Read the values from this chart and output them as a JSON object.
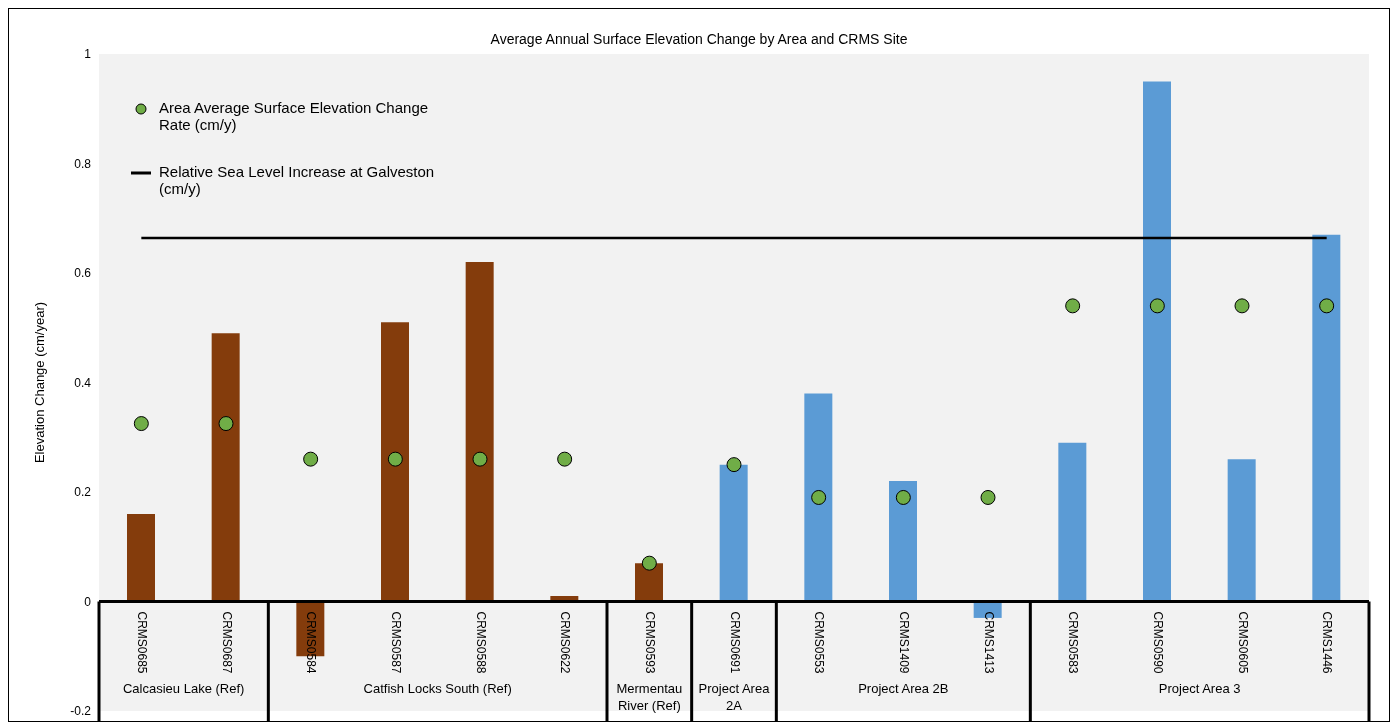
{
  "chart_data": {
    "type": "bar",
    "title": "Average Annual Surface Elevation Change by Area and CRMS Site",
    "ylabel": "Elevation Change (cm/year)",
    "categories": [
      "CRMS0685",
      "CRMS0687",
      "CRMS0584",
      "CRMS0587",
      "CRMS0588",
      "CRMS0622",
      "CRMS0593",
      "CRMS0691",
      "CRMS0553",
      "CRMS1409",
      "CRMS1413",
      "CRMS0583",
      "CRMS0590",
      "CRMS0605",
      "CRMS1446"
    ],
    "series": [
      {
        "colors": [
          "#843c0c",
          "#843c0c",
          "#843c0c",
          "#843c0c",
          "#843c0c",
          "#843c0c",
          "#843c0c",
          "#5b9bd5",
          "#5b9bd5",
          "#5b9bd5",
          "#5b9bd5",
          "#5b9bd5",
          "#5b9bd5",
          "#5b9bd5",
          "#5b9bd5"
        ],
        "values": [
          0.16,
          0.49,
          -0.1,
          0.51,
          0.62,
          0.01,
          0.07,
          0.25,
          0.38,
          0.22,
          -0.03,
          0.29,
          0.95,
          0.26,
          0.67
        ]
      },
      {
        "type": "scatter",
        "name": "Area Average Surface Elevation Change Rate (cm/y)",
        "color": "#70ad47",
        "marker": "circle",
        "values": [
          0.325,
          0.325,
          0.26,
          0.26,
          0.26,
          0.26,
          0.07,
          0.25,
          0.19,
          0.19,
          0.19,
          0.54,
          0.54,
          0.54,
          0.54
        ]
      },
      {
        "type": "line",
        "name": "Relative Sea Level Increase at Galveston (cm/y)",
        "color": "#000000",
        "values": [
          0.664,
          0.664,
          0.664,
          0.664,
          0.664,
          0.664,
          0.664,
          0.664,
          0.664,
          0.664,
          0.664,
          0.664,
          0.664,
          0.664,
          0.664
        ]
      }
    ],
    "annotations": [
      "Calcasieu Lake (Ref)",
      "Catfish Locks South (Ref)",
      "Mermentau River (Ref)",
      "Project Area 2A",
      "Project Area 2B",
      "Project Area 3"
    ],
    "ylim": [
      -0.2,
      1
    ],
    "yticks": [
      -0.2,
      0,
      0.2,
      0.4,
      0.6,
      0.8,
      1
    ],
    "grid": false,
    "legend": "top left"
  }
}
